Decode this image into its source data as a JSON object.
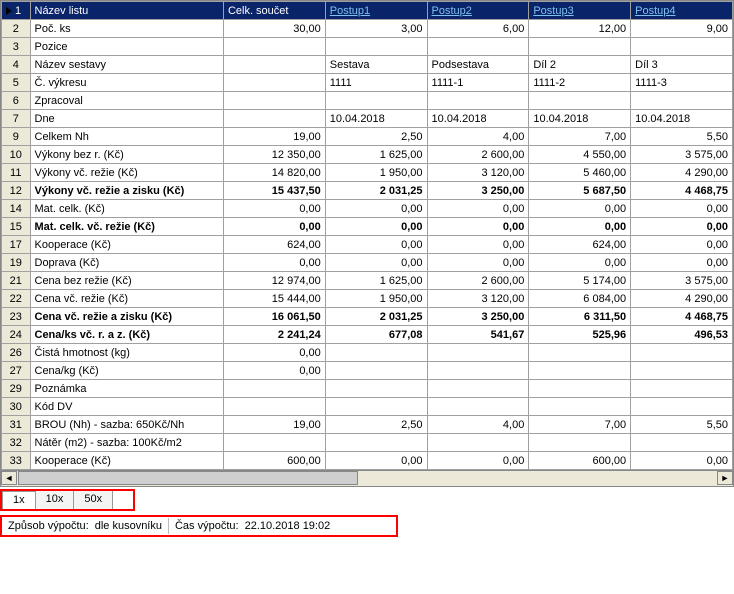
{
  "header": {
    "rownum": "1",
    "label": "Název listu",
    "cols": [
      "Celk. součet",
      "Postup1",
      "Postup2",
      "Postup3",
      "Postup4"
    ],
    "link_cols": [
      false,
      true,
      true,
      true,
      true
    ],
    "header_bg": "#0a246a",
    "header_fg": "#ffffff",
    "link_color": "#7ec0ee"
  },
  "rows": [
    {
      "n": "2",
      "label": "Poč. ks",
      "cells": [
        "30,00",
        "3,00",
        "6,00",
        "12,00",
        "9,00"
      ],
      "bold": false
    },
    {
      "n": "3",
      "label": "Pozice",
      "cells": [
        "",
        "",
        "",
        "",
        ""
      ],
      "bold": false
    },
    {
      "n": "4",
      "label": "Název sestavy",
      "cells": [
        "",
        "Sestava",
        "Podsestava",
        "Díl 2",
        "Díl 3"
      ],
      "bold": false,
      "align": "left"
    },
    {
      "n": "5",
      "label": "Č. výkresu",
      "cells": [
        "",
        "1111",
        "1111-1",
        "1111-2",
        "1111-3"
      ],
      "bold": false,
      "align": "left"
    },
    {
      "n": "6",
      "label": "Zpracoval",
      "cells": [
        "",
        "",
        "",
        "",
        ""
      ],
      "bold": false
    },
    {
      "n": "7",
      "label": "Dne",
      "cells": [
        "",
        "10.04.2018",
        "10.04.2018",
        "10.04.2018",
        "10.04.2018"
      ],
      "bold": false,
      "align": "left"
    },
    {
      "n": "9",
      "label": "Celkem Nh",
      "cells": [
        "19,00",
        "2,50",
        "4,00",
        "7,00",
        "5,50"
      ],
      "bold": false
    },
    {
      "n": "10",
      "label": "Výkony bez r. (Kč)",
      "cells": [
        "12 350,00",
        "1 625,00",
        "2 600,00",
        "4 550,00",
        "3 575,00"
      ],
      "bold": false
    },
    {
      "n": "11",
      "label": "Výkony vč. režie (Kč)",
      "cells": [
        "14 820,00",
        "1 950,00",
        "3 120,00",
        "5 460,00",
        "4 290,00"
      ],
      "bold": false
    },
    {
      "n": "12",
      "label": "Výkony vč. režie a zisku (Kč)",
      "cells": [
        "15 437,50",
        "2 031,25",
        "3 250,00",
        "5 687,50",
        "4 468,75"
      ],
      "bold": true
    },
    {
      "n": "14",
      "label": "Mat. celk. (Kč)",
      "cells": [
        "0,00",
        "0,00",
        "0,00",
        "0,00",
        "0,00"
      ],
      "bold": false
    },
    {
      "n": "15",
      "label": "Mat. celk. vč. režie (Kč)",
      "cells": [
        "0,00",
        "0,00",
        "0,00",
        "0,00",
        "0,00"
      ],
      "bold": true
    },
    {
      "n": "17",
      "label": "Kooperace (Kč)",
      "cells": [
        "624,00",
        "0,00",
        "0,00",
        "624,00",
        "0,00"
      ],
      "bold": false
    },
    {
      "n": "19",
      "label": "Doprava (Kč)",
      "cells": [
        "0,00",
        "0,00",
        "0,00",
        "0,00",
        "0,00"
      ],
      "bold": false
    },
    {
      "n": "21",
      "label": "Cena bez režie (Kč)",
      "cells": [
        "12 974,00",
        "1 625,00",
        "2 600,00",
        "5 174,00",
        "3 575,00"
      ],
      "bold": false
    },
    {
      "n": "22",
      "label": "Cena vč. režie (Kč)",
      "cells": [
        "15 444,00",
        "1 950,00",
        "3 120,00",
        "6 084,00",
        "4 290,00"
      ],
      "bold": false
    },
    {
      "n": "23",
      "label": "Cena vč. režie a zisku (Kč)",
      "cells": [
        "16 061,50",
        "2 031,25",
        "3 250,00",
        "6 311,50",
        "4 468,75"
      ],
      "bold": true
    },
    {
      "n": "24",
      "label": "Cena/ks vč. r. a z. (Kč)",
      "cells": [
        "2 241,24",
        "677,08",
        "541,67",
        "525,96",
        "496,53"
      ],
      "bold": true
    },
    {
      "n": "26",
      "label": "Čistá hmotnost (kg)",
      "cells": [
        "0,00",
        "",
        "",
        "",
        ""
      ],
      "bold": false
    },
    {
      "n": "27",
      "label": "Cena/kg (Kč)",
      "cells": [
        "0,00",
        "",
        "",
        "",
        ""
      ],
      "bold": false
    },
    {
      "n": "29",
      "label": "Poznámka",
      "cells": [
        "",
        "",
        "",
        "",
        ""
      ],
      "bold": false
    },
    {
      "n": "30",
      "label": "Kód DV",
      "cells": [
        "",
        "",
        "",
        "",
        ""
      ],
      "bold": false
    },
    {
      "n": "31",
      "label": "BROU (Nh) - sazba: 650Kč/Nh",
      "cells": [
        "19,00",
        "2,50",
        "4,00",
        "7,00",
        "5,50"
      ],
      "bold": false
    },
    {
      "n": "32",
      "label": "Nátěr (m2) - sazba: 100Kč/m2",
      "cells": [
        "",
        "",
        "",
        "",
        ""
      ],
      "bold": false
    },
    {
      "n": "33",
      "label": "Kooperace (Kč)",
      "cells": [
        "600,00",
        "0,00",
        "0,00",
        "600,00",
        "0,00"
      ],
      "bold": false
    }
  ],
  "tabs": [
    "1x",
    "10x",
    "50x"
  ],
  "tabs_active": 0,
  "status": {
    "k1": "Způsob výpočtu:",
    "v1": "dle kusovníku",
    "k2": "Čas výpočtu:",
    "v2": "22.10.2018 19:02"
  },
  "colors": {
    "row_header_bg": "#ece9d8",
    "grid_border": "#a0a0a0",
    "highlight_border": "#ff0000"
  }
}
